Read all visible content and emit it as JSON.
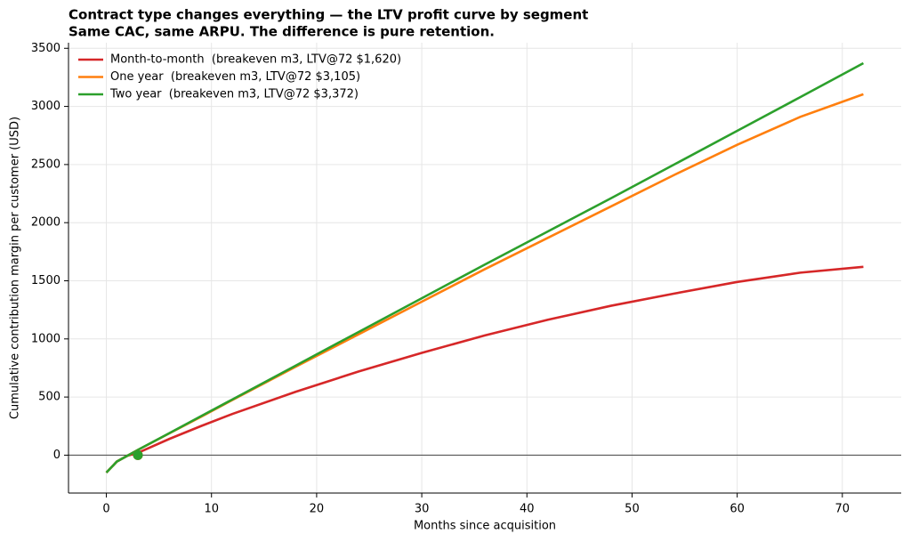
{
  "chart_data": {
    "type": "line",
    "title": "Contract type changes everything — the LTV profit curve by segment",
    "subtitle": "Same CAC, same ARPU. The difference is pure retention.",
    "x_label": "Months since acquisition",
    "y_label": "Cumulative contribution margin per customer (USD)",
    "x": [
      0,
      1,
      2,
      3,
      6,
      9,
      12,
      18,
      24,
      30,
      36,
      42,
      48,
      54,
      60,
      66,
      72
    ],
    "series": [
      {
        "name": "Month-to-month  (breakeven m3, LTV@72 $1,620)",
        "color": "#d62728",
        "breakeven_month": 3,
        "values": [
          -150,
          -55,
          -5,
          20,
          140,
          250,
          355,
          545,
          720,
          880,
          1030,
          1165,
          1285,
          1390,
          1490,
          1570,
          1620
        ]
      },
      {
        "name": "One year  (breakeven m3, LTV@72 $3,105)",
        "color": "#ff7f0e",
        "breakeven_month": 3,
        "values": [
          -150,
          -55,
          -5,
          45,
          188,
          330,
          475,
          760,
          1040,
          1320,
          1600,
          1870,
          2140,
          2410,
          2670,
          2910,
          3105
        ]
      },
      {
        "name": "Two year  (breakeven m3, LTV@72 $3,372)",
        "color": "#2ca02c",
        "breakeven_month": 3,
        "values": [
          -150,
          -55,
          -5,
          45,
          190,
          335,
          480,
          770,
          1060,
          1350,
          1640,
          1925,
          2210,
          2500,
          2790,
          3080,
          3372
        ]
      }
    ],
    "xlim": [
      -3.6,
      75.6
    ],
    "ylim": [
      -326,
      3548
    ],
    "xticks": [
      0,
      10,
      20,
      30,
      40,
      50,
      60,
      70
    ],
    "yticks": [
      0,
      500,
      1000,
      1500,
      2000,
      2500,
      3000,
      3500
    ],
    "zero_line": 0,
    "grid": true,
    "legend": "upper left"
  }
}
